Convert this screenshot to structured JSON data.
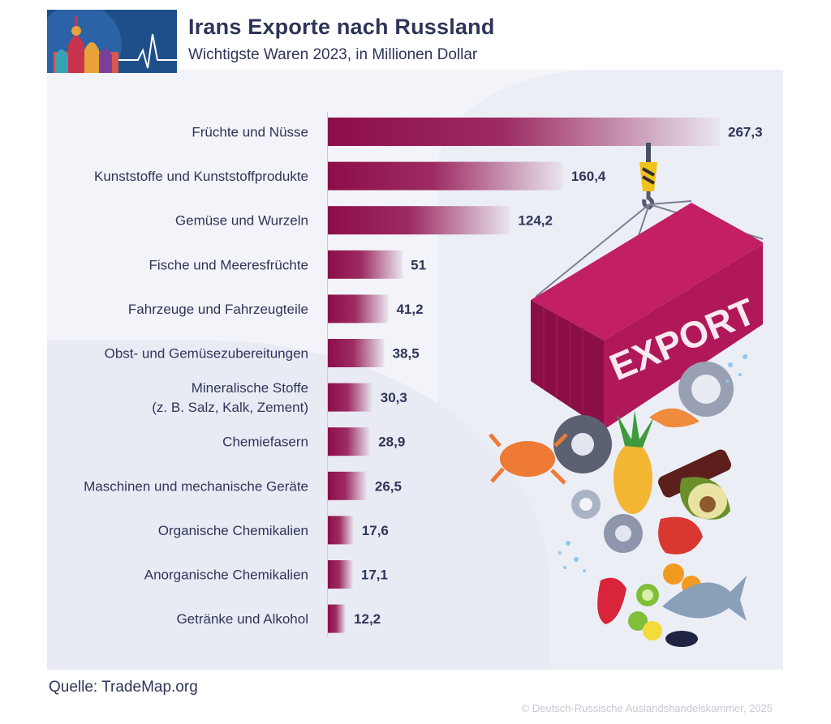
{
  "header": {
    "title": "Irans Exporte nach Russland",
    "subtitle": "Wichtigste Waren 2023, in Millionen Dollar"
  },
  "chart_data": {
    "type": "bar",
    "orientation": "horizontal",
    "title": "Irans Exporte nach Russland",
    "subtitle": "Wichtigste Waren 2023, in Millionen Dollar",
    "unit": "Millionen Dollar",
    "categories": [
      "Früchte und Nüsse",
      "Kunststoffe und Kunststoffprodukte",
      "Gemüse und Wurzeln",
      "Fische und Meeresfrüchte",
      "Fahrzeuge und Fahrzeugteile",
      "Obst- und Gemüsezubereitungen",
      "Mineralische Stoffe\n(z. B. Salz, Kalk, Zement)",
      "Chemiefasern",
      "Maschinen und mechanische Geräte",
      "Organische Chemikalien",
      "Anorganische Chemikalien",
      "Getränke und Alkohol"
    ],
    "values": [
      267.3,
      160.4,
      124.2,
      51,
      41.2,
      38.5,
      30.3,
      28.9,
      26.5,
      17.6,
      17.1,
      12.2
    ],
    "value_labels": [
      "267,3",
      "160,4",
      "124,2",
      "51",
      "41,2",
      "38,5",
      "30,3",
      "28,9",
      "26,5",
      "17,6",
      "17,1",
      "12,2"
    ],
    "xlim": [
      0,
      267.3
    ],
    "colors": {
      "bar": "#8c0d4a",
      "bar_fade": "#e9e6ef",
      "text": "#2e3559"
    }
  },
  "illustration": {
    "container_label": "EXPORT",
    "container_color": "#b0185a"
  },
  "footer": {
    "source": "Quelle: TradeMap.org",
    "copyright": "© Deutsch-Russische Auslandshandelskammer, 2025"
  }
}
